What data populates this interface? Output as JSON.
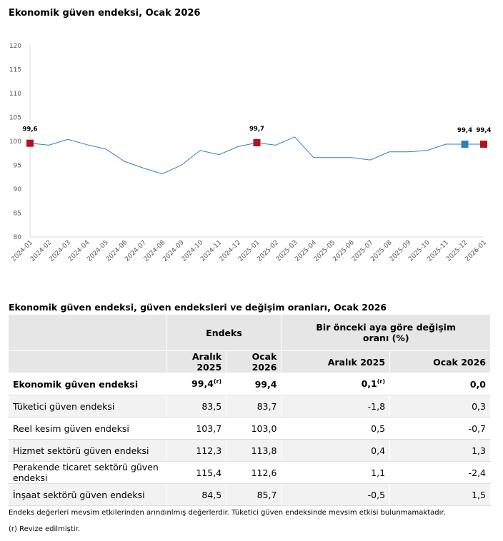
{
  "chart_data": {
    "type": "line",
    "title": "Ekonomik güven endeksi, Ocak 2026",
    "ylim": [
      80,
      120
    ],
    "yticks": [
      80,
      85,
      90,
      95,
      100,
      105,
      110,
      115,
      120
    ],
    "categories": [
      "2024-01",
      "2024-02",
      "2024-03",
      "2024-04",
      "2024-05",
      "2024-06",
      "2024-07",
      "2024-08",
      "2024-09",
      "2024-10",
      "2024-11",
      "2024-12",
      "2025-01",
      "2025-02",
      "2025-03",
      "2025-04",
      "2025-05",
      "2025-06",
      "2025-07",
      "2025-08",
      "2025-09",
      "2025-10",
      "2025-11",
      "2025-12",
      "2026-01"
    ],
    "values": [
      99.6,
      99.2,
      100.4,
      99.3,
      98.4,
      95.8,
      94.4,
      93.2,
      95.0,
      98.1,
      97.2,
      98.9,
      99.7,
      99.2,
      100.9,
      96.6,
      96.6,
      96.6,
      96.1,
      97.8,
      97.8,
      98.1,
      99.4,
      99.4,
      99.4
    ],
    "labels": {
      "0": "99,6",
      "12": "99,7",
      "23": "99,4",
      "24": "99,4"
    },
    "markers": {
      "0": "#b5121b",
      "12": "#b5121b",
      "23": "#2e7ebf",
      "24": "#b5121b"
    },
    "line_color": "#2e7ebf",
    "grid": false
  },
  "table": {
    "title": "Ekonomik güven endeksi, güven endeksleri ve değişim oranları, Ocak 2026",
    "group1": "Endeks",
    "group2": "Bir önceki aya göre değişim oranı (%)",
    "cols": [
      "Aralık 2025",
      "Ocak 2026",
      "Aralık 2025",
      "Ocak 2026"
    ],
    "rows": [
      [
        "Ekonomik güven endeksi",
        "99,4",
        "99,4",
        "0,1",
        "0,0"
      ],
      [
        "Tüketici güven endeksi",
        "83,5",
        "83,7",
        "-1,8",
        "0,3"
      ],
      [
        "Reel kesim güven endeksi",
        "103,7",
        "103,0",
        "0,5",
        "-0,7"
      ],
      [
        "Hizmet sektörü güven endeksi",
        "112,3",
        "113,8",
        "0,4",
        "1,3"
      ],
      [
        "Perakende ticaret sektörü güven endeksi",
        "115,4",
        "112,6",
        "1,1",
        "-2,4"
      ],
      [
        "İnşaat sektörü güven endeksi",
        "84,5",
        "85,7",
        "-0,5",
        "1,5"
      ]
    ],
    "revised_mark": "(r)",
    "note1": "Endeks değerleri mevsim etkilerinden arındınlmış değerlerdir. Tüketici güven endeksinde mevsim etkisi bulunmamaktadır.",
    "note2": "(r) Revize edilmiştir."
  }
}
